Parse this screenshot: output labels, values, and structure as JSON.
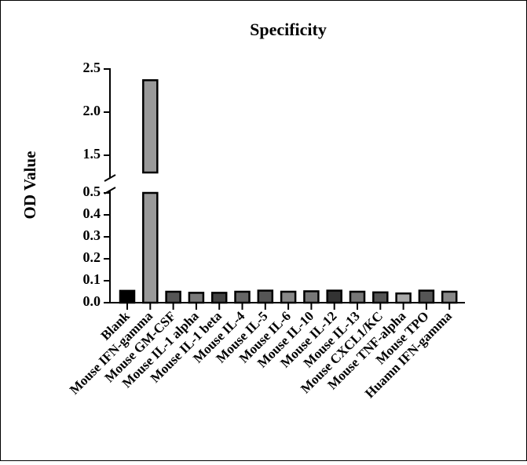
{
  "chart_data": {
    "type": "bar",
    "title": "Specificity",
    "y_label": "OD Value",
    "categories": [
      "Blank",
      "Mouse IFN-gamma",
      "Mouse GM-CSF",
      "Mouse IL-1 alpha",
      "Mouse IL-1 beta",
      "Mouse IL-4",
      "Mouse IL-5",
      "Mouse IL-6",
      "Mouse IL-10",
      "Mouse IL-12",
      "Mouse IL-13",
      "Mouse CXCL1/KC",
      "Mouse TNF-alpha",
      "Mouse TPO",
      "Huamn IFN-gamma"
    ],
    "values": [
      0.054,
      2.37,
      0.05,
      0.045,
      0.045,
      0.05,
      0.055,
      0.05,
      0.052,
      0.055,
      0.05,
      0.047,
      0.042,
      0.055,
      0.05
    ],
    "colors": [
      "#000000",
      "#999999",
      "#555555",
      "#7a7a7a",
      "#444444",
      "#666666",
      "#555555",
      "#888888",
      "#777777",
      "#333333",
      "#777777",
      "#555555",
      "#aaaaaa",
      "#555555",
      "#888888"
    ],
    "y_segments": [
      {
        "ylim": [
          0,
          0.5
        ],
        "yticks": [
          {
            "value": 0,
            "label": "0.0"
          },
          0.1,
          0.2,
          0.3,
          0.4,
          0.5
        ]
      },
      {
        "ylim": [
          1.3,
          2.5
        ],
        "yticks": [
          1.5,
          {
            "value": 2,
            "label": "2.0"
          },
          2.5
        ]
      }
    ]
  }
}
